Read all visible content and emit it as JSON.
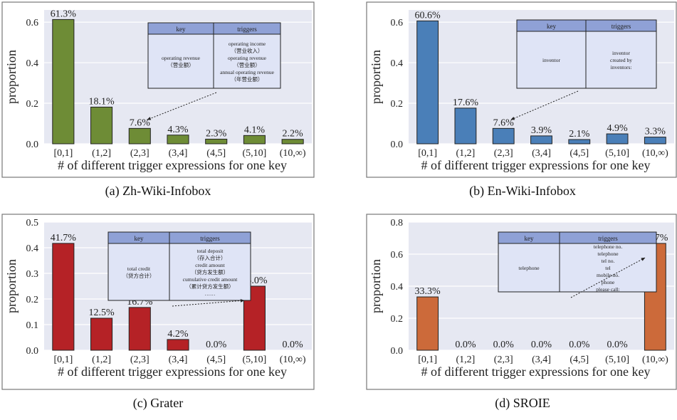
{
  "chart_data": [
    {
      "type": "bar",
      "caption": "(a) Zh-Wiki-Infobox",
      "categories": [
        "[0,1]",
        "(1,2]",
        "(2,3]",
        "(3,4]",
        "(4,5]",
        "(5,10]",
        "(10,∞)"
      ],
      "values": [
        61.3,
        18.1,
        7.6,
        4.3,
        2.3,
        4.1,
        2.2
      ],
      "value_labels": [
        "61.3%",
        "18.1%",
        "7.6%",
        "4.3%",
        "2.3%",
        "4.1%",
        "2.2%"
      ],
      "xlabel": "# of different trigger expressions for one key",
      "ylabel": "proportion",
      "ylim": [
        0,
        0.66
      ],
      "yticks": [
        0.0,
        0.2,
        0.4,
        0.6
      ],
      "ytick_labels": [
        "0.0",
        "0.2",
        "0.4",
        "0.6"
      ],
      "grid": true,
      "color": "#6e8c36",
      "inset": {
        "headers": [
          "key",
          "triggers"
        ],
        "key": [
          "operating revenue",
          "（营业额）"
        ],
        "triggers": [
          "operating income",
          "（营业收入）",
          "operating revenue",
          "（营业额）",
          "annual operating revenue",
          "（年营业额）"
        ],
        "arrow_to_category": 2
      }
    },
    {
      "type": "bar",
      "caption": "(b) En-Wiki-Infobox",
      "categories": [
        "[0,1]",
        "(1,2]",
        "(2,3]",
        "(3,4]",
        "(4,5]",
        "(5,10]",
        "(10,∞)"
      ],
      "values": [
        60.6,
        17.6,
        7.6,
        3.9,
        2.1,
        4.9,
        3.3
      ],
      "value_labels": [
        "60.6%",
        "17.6%",
        "7.6%",
        "3.9%",
        "2.1%",
        "4.9%",
        "3.3%"
      ],
      "xlabel": "# of different trigger expressions for one key",
      "ylabel": "proportion",
      "ylim": [
        0,
        0.66
      ],
      "yticks": [
        0.0,
        0.2,
        0.4,
        0.6
      ],
      "ytick_labels": [
        "0.0",
        "0.2",
        "0.4",
        "0.6"
      ],
      "grid": true,
      "color": "#4a7fb8",
      "inset": {
        "headers": [
          "key",
          "triggers"
        ],
        "key": [
          "inventor"
        ],
        "triggers": [
          "inventor",
          "created by",
          "inventors:"
        ],
        "arrow_to_category": 2
      }
    },
    {
      "type": "bar",
      "caption": "(c) Grater",
      "categories": [
        "[0,1]",
        "(1,2]",
        "(2,3]",
        "(3,4]",
        "(4,5]",
        "(5,10]",
        "(10,∞)"
      ],
      "values": [
        41.7,
        12.5,
        16.7,
        4.2,
        0.0,
        25.0,
        0.0
      ],
      "value_labels": [
        "41.7%",
        "12.5%",
        "16.7%",
        "4.2%",
        "0.0%",
        "25.0%",
        "0.0%"
      ],
      "xlabel": "# of different trigger expressions for one key",
      "ylabel": "proportion",
      "ylim": [
        0,
        0.5
      ],
      "yticks": [
        0.0,
        0.1,
        0.2,
        0.3,
        0.4,
        0.5
      ],
      "ytick_labels": [
        "0.0",
        "0.1",
        "0.2",
        "0.3",
        "0.4",
        "0.5"
      ],
      "grid": true,
      "color": "#b52226",
      "inset": {
        "headers": [
          "key",
          "triggers"
        ],
        "key": [
          "total credit",
          "（贷方合计）"
        ],
        "triggers": [
          "total deposit",
          "（存入合计）",
          "credit amount",
          "（贷方发生额）",
          "cumulative credit amount",
          "（累计贷方发生额）",
          "……"
        ],
        "arrow_to_category": 5
      }
    },
    {
      "type": "bar",
      "caption": "(d) SROIE",
      "categories": [
        "[0,1]",
        "(1,2]",
        "(2,3]",
        "(3,4]",
        "(4,5]",
        "(5,10]",
        "(10,∞)"
      ],
      "values": [
        33.3,
        0.0,
        0.0,
        0.0,
        0.0,
        0.0,
        66.7
      ],
      "value_labels": [
        "33.3%",
        "0.0%",
        "0.0%",
        "0.0%",
        "0.0%",
        "0.0%",
        "66.7%"
      ],
      "xlabel": "# of different trigger expressions for one key",
      "ylabel": "proportion",
      "ylim": [
        0,
        0.8
      ],
      "yticks": [
        0.0,
        0.2,
        0.4,
        0.6,
        0.8
      ],
      "ytick_labels": [
        "0.0",
        "0.2",
        "0.4",
        "0.6",
        "0.8"
      ],
      "grid": true,
      "color": "#cc6a3a",
      "inset": {
        "headers": [
          "key",
          "triggers"
        ],
        "key": [
          "telephone"
        ],
        "triggers": [
          "telephone no.",
          "telephone",
          "tel no.",
          "tel",
          "mobile no.",
          "phone",
          "please call:"
        ],
        "arrow_to_category": 6
      }
    }
  ]
}
